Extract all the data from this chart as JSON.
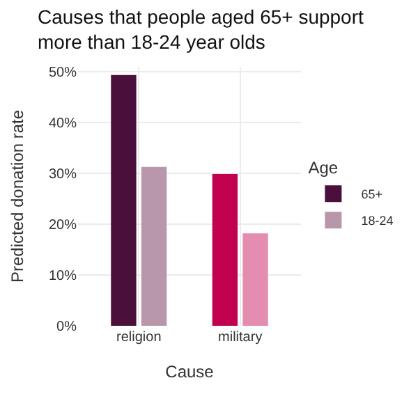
{
  "chart_data": {
    "type": "bar",
    "title": "Causes that people aged 65+ support more than 18-24 year olds",
    "xlabel": "Cause",
    "ylabel": "Predicted donation rate",
    "legend_title": "Age",
    "legend": "right",
    "categories": [
      "religion",
      "military"
    ],
    "series": [
      {
        "name": "65+",
        "colors": [
          "#4a0f3a",
          "#c2024f"
        ],
        "values": [
          49.4,
          29.9
        ]
      },
      {
        "name": "18-24",
        "colors": [
          "#b897ab",
          "#e48db0"
        ],
        "values": [
          31.3,
          18.2
        ]
      }
    ],
    "ylim": [
      0,
      51
    ],
    "yticks": [
      {
        "value": 0,
        "label": "0%"
      },
      {
        "value": 10,
        "label": "10%"
      },
      {
        "value": 20,
        "label": "20%"
      },
      {
        "value": 30,
        "label": "30%"
      },
      {
        "value": 40,
        "label": "40%"
      },
      {
        "value": 50,
        "label": "50%"
      }
    ],
    "grid": true
  }
}
